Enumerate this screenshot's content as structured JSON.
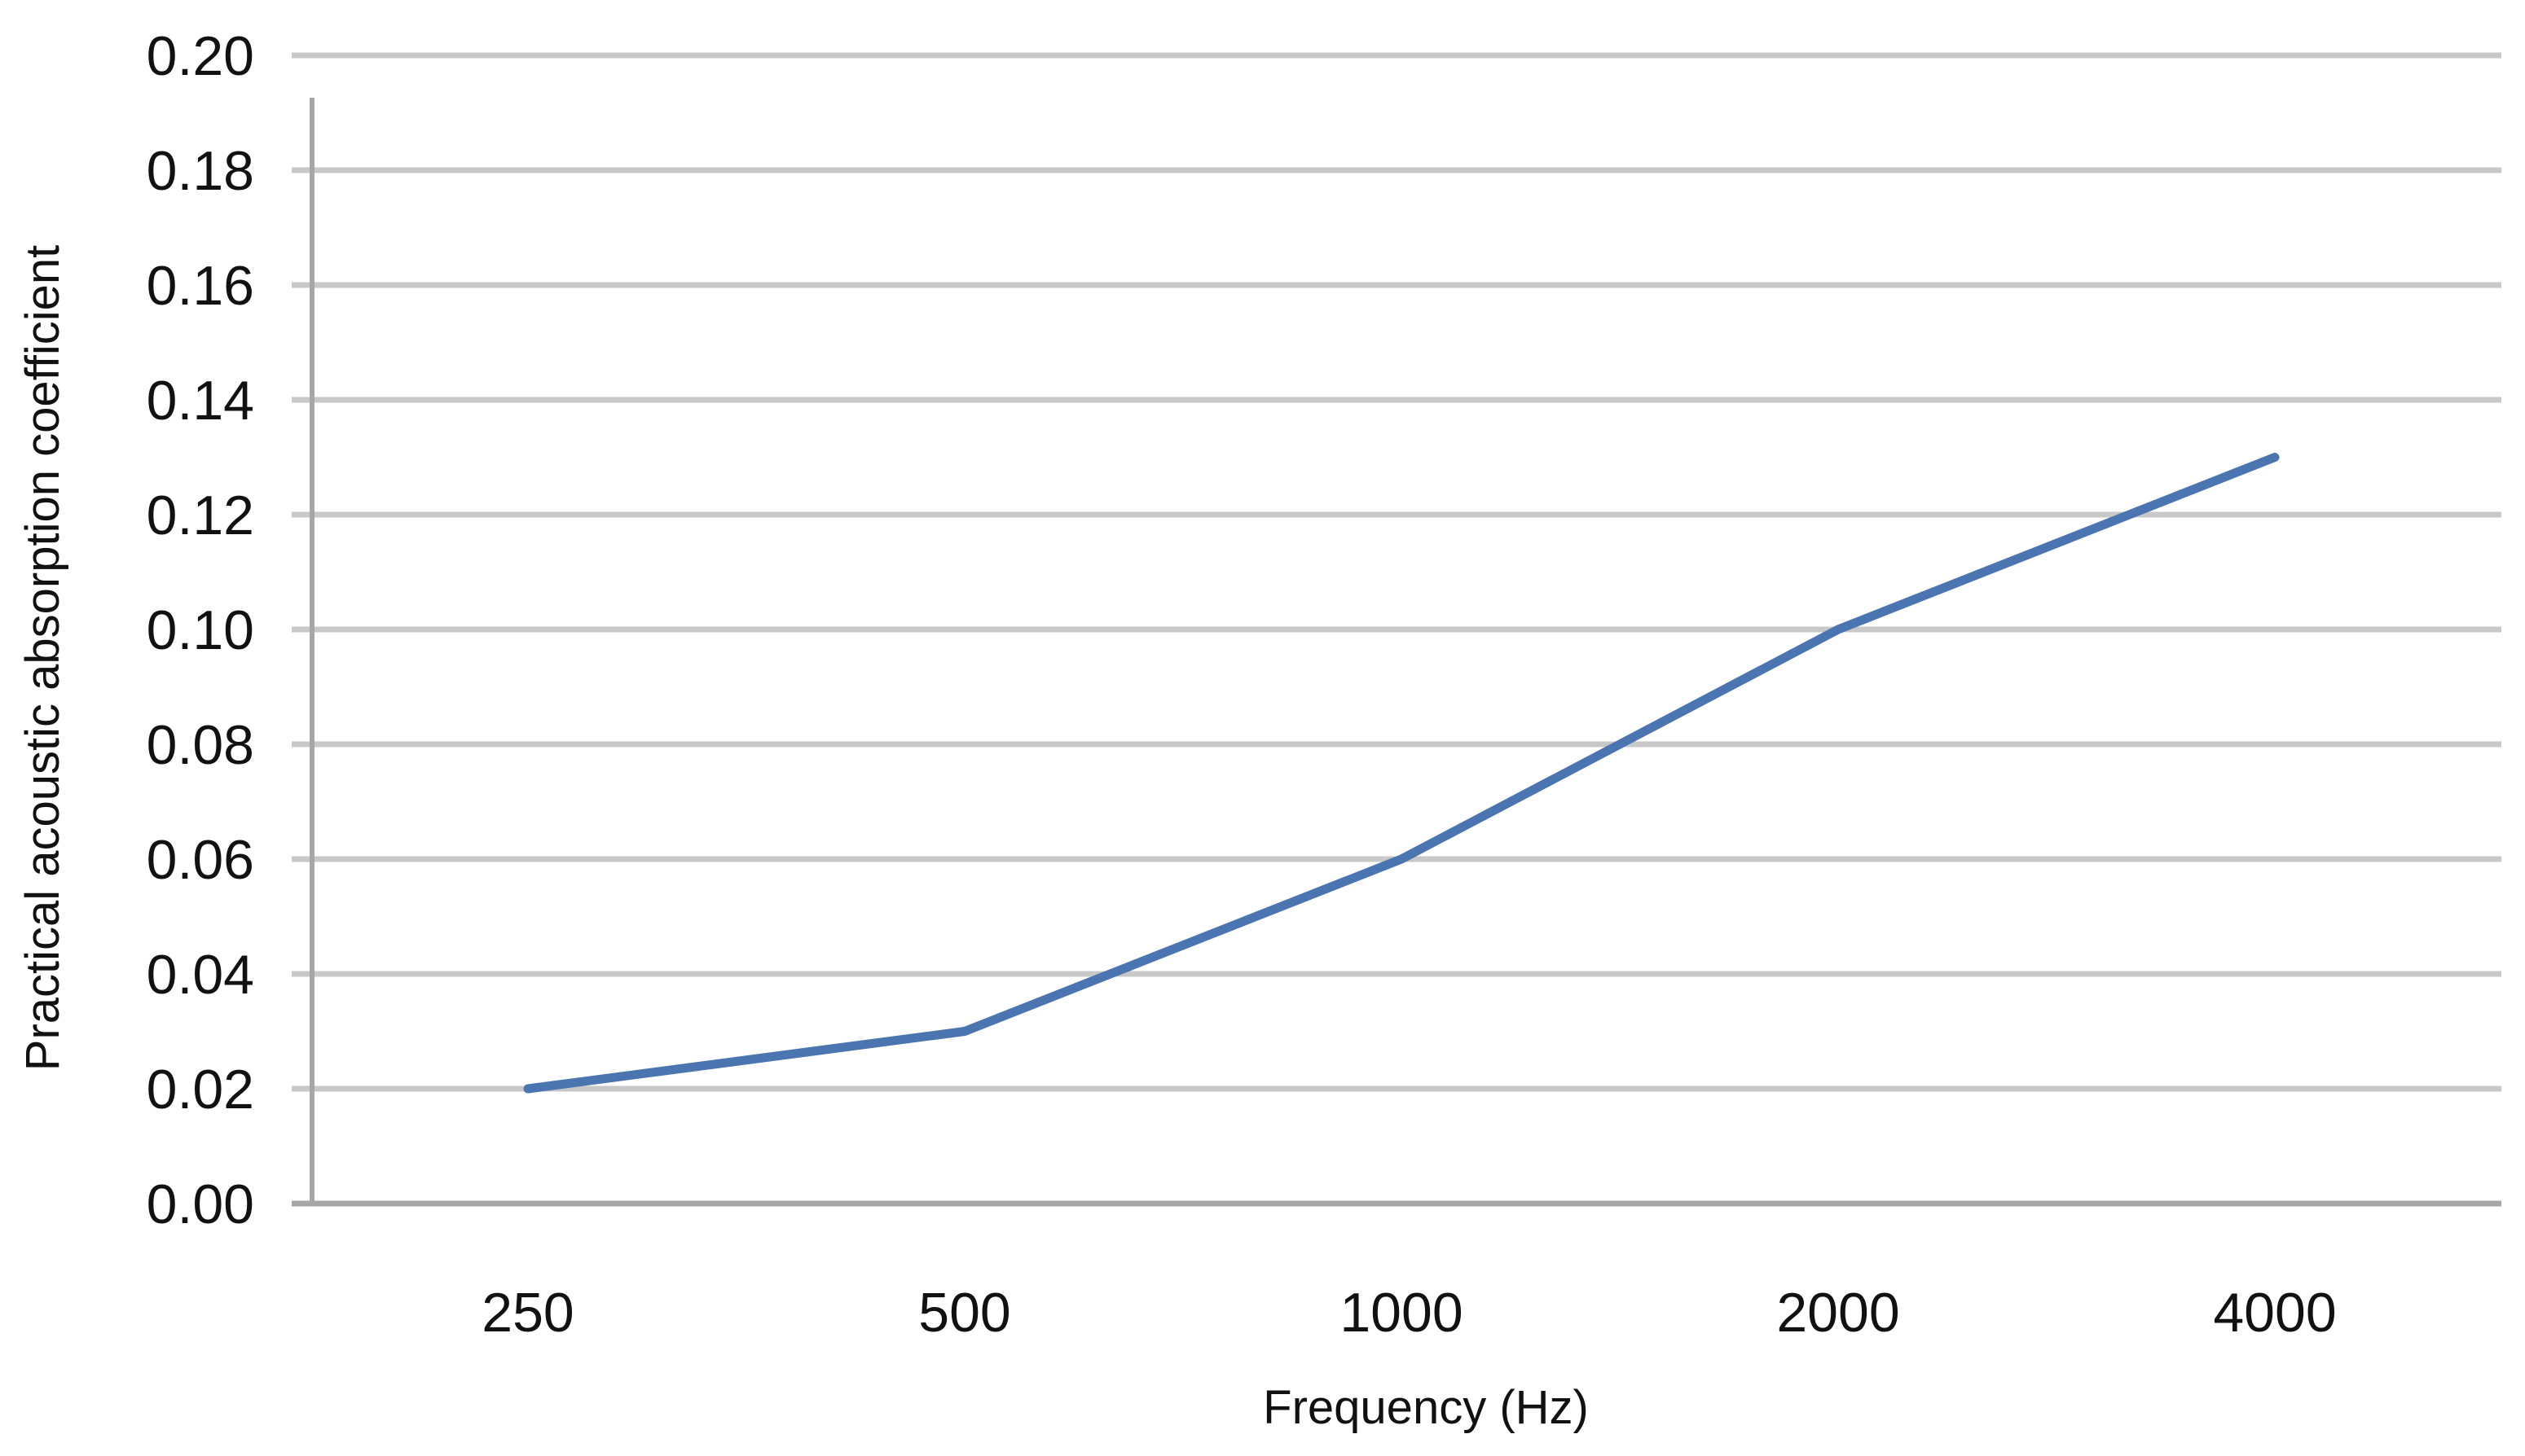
{
  "chart_data": {
    "type": "line",
    "title": "",
    "xlabel": "Frequency (Hz)",
    "ylabel": "Practical acoustic absorption coefficient",
    "categories": [
      "250",
      "500",
      "1000",
      "2000",
      "4000"
    ],
    "series": [
      {
        "values": [
          0.02,
          0.03,
          0.06,
          0.1,
          0.13
        ]
      }
    ],
    "ylim": [
      0,
      0.2
    ],
    "yticks": [
      "0.00",
      "0.02",
      "0.04",
      "0.06",
      "0.08",
      "0.10",
      "0.12",
      "0.14",
      "0.16",
      "0.18",
      "0.20"
    ],
    "grid": "horizontal",
    "legend": "none",
    "colors": {
      "line": "#4a75b0",
      "grid": "#c8c8c8",
      "axis": "#a6a6a6"
    }
  }
}
